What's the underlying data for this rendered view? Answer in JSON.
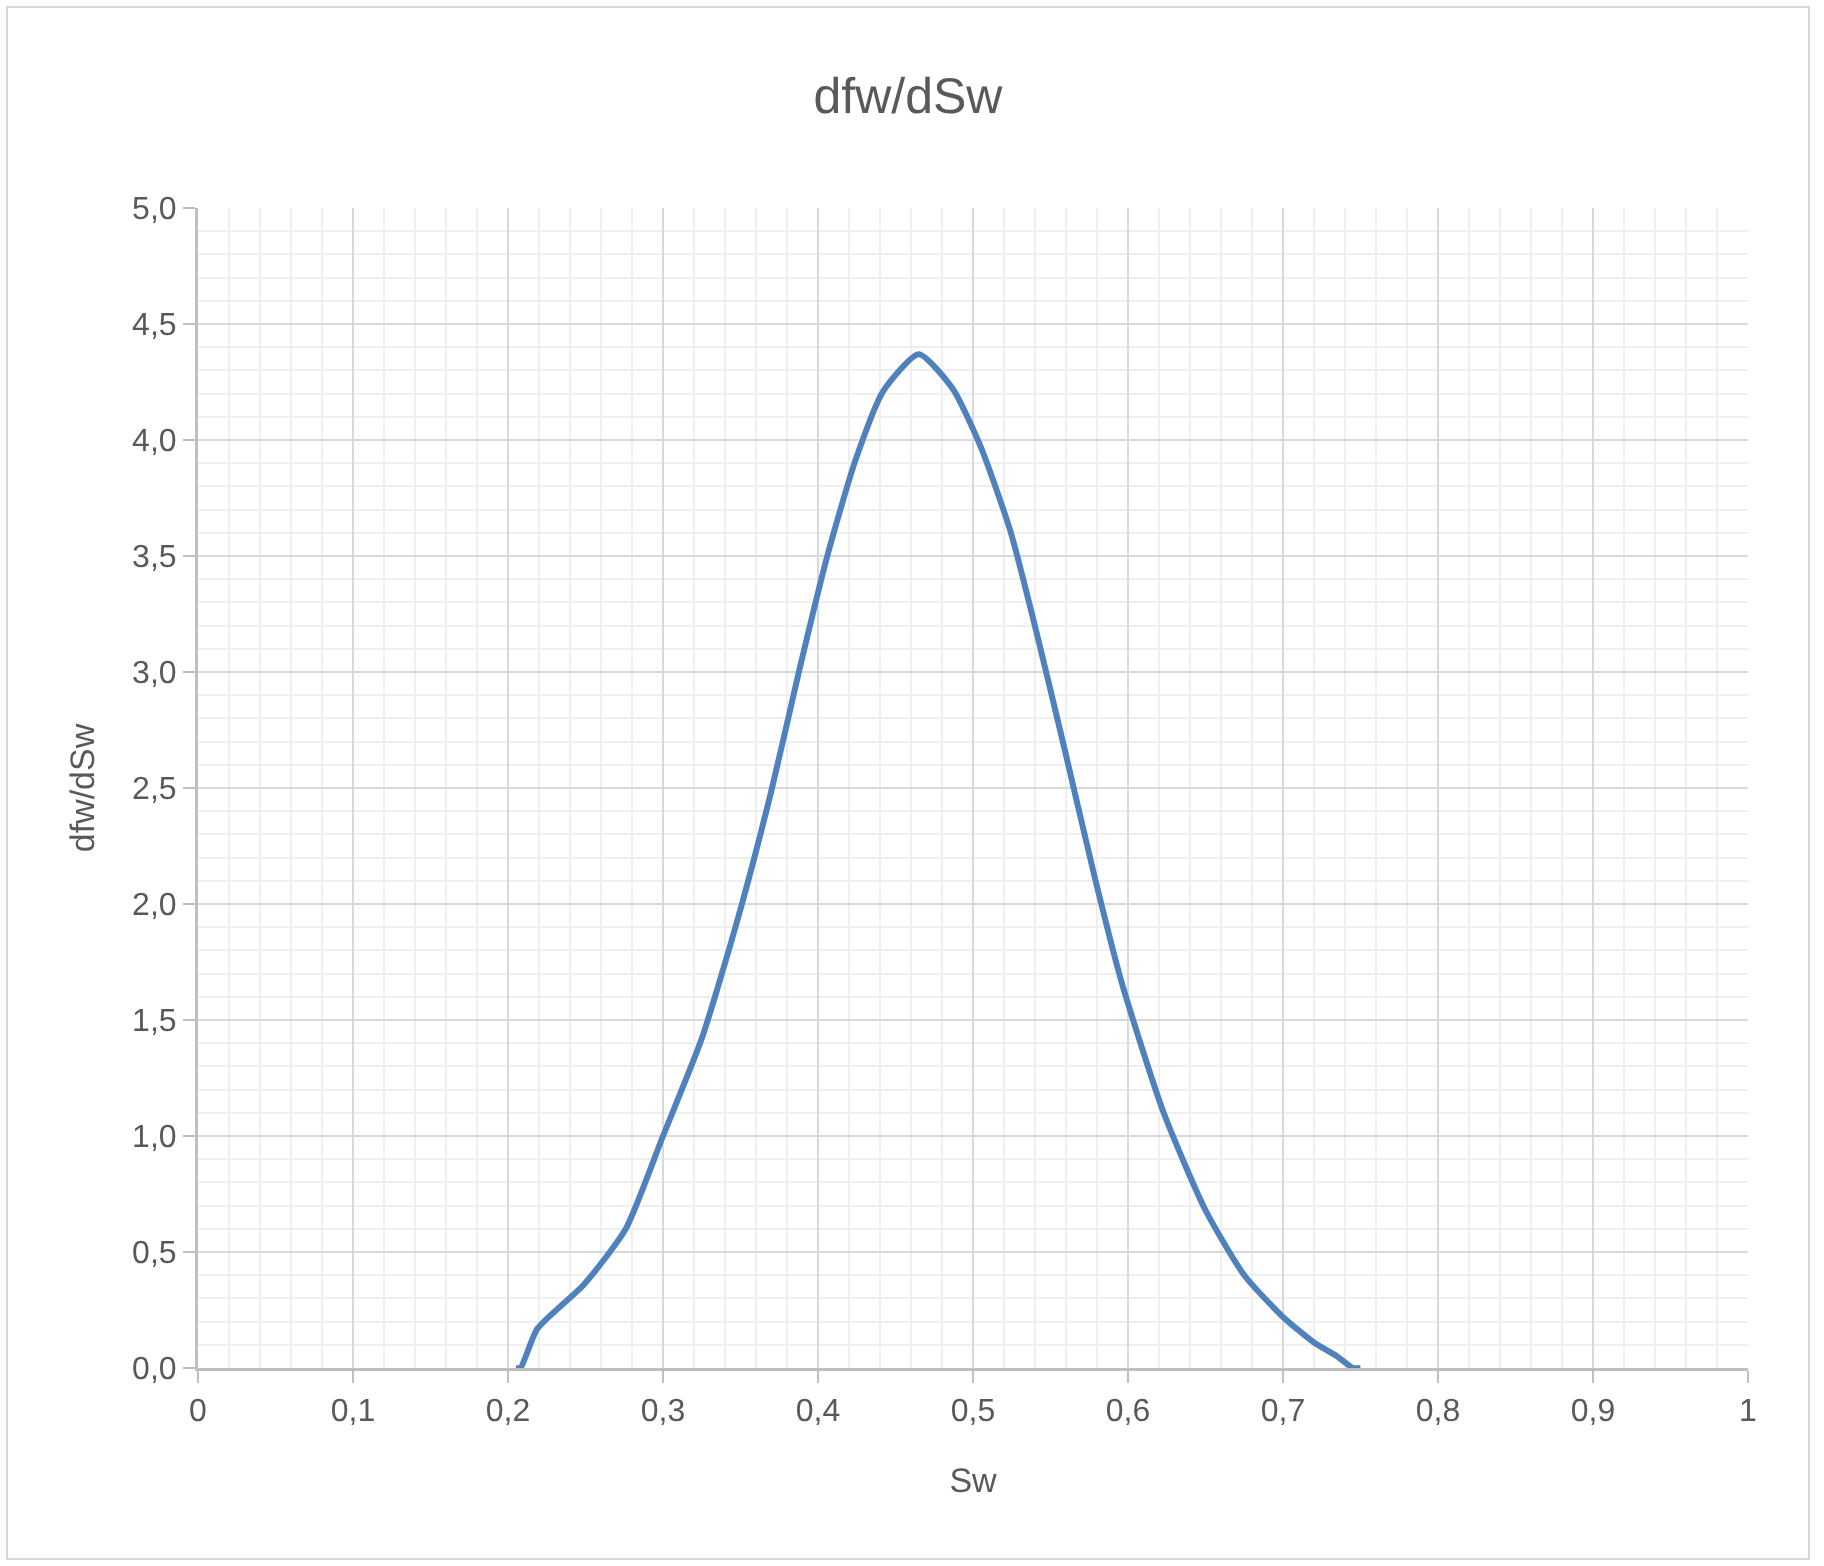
{
  "chart_data": {
    "type": "line",
    "title": "dfw/dSw",
    "xlabel": "Sw",
    "ylabel": "dfw/dSw",
    "x": [
      0.205,
      0.208,
      0.219,
      0.249,
      0.276,
      0.3,
      0.325,
      0.348,
      0.37,
      0.388,
      0.406,
      0.424,
      0.442,
      0.465,
      0.487,
      0.505,
      0.524,
      0.541,
      0.559,
      0.578,
      0.596,
      0.623,
      0.65,
      0.675,
      0.7,
      0.72,
      0.735,
      0.745,
      0.75
    ],
    "series": [
      {
        "color": "#4f81bd",
        "values": [
          0,
          0,
          0.17,
          0.36,
          0.6,
          1.0,
          1.42,
          1.93,
          2.49,
          3.01,
          3.5,
          3.91,
          4.21,
          4.37,
          4.22,
          3.97,
          3.61,
          3.17,
          2.67,
          2.13,
          1.66,
          1.1,
          0.68,
          0.4,
          0.22,
          0.11,
          0.05,
          0,
          0
        ]
      }
    ],
    "xlim": [
      0,
      1
    ],
    "ylim": [
      0,
      5
    ],
    "xticks": [
      0,
      {
        "value": 0.1,
        "label": "0,1"
      },
      {
        "value": 0.2,
        "label": "0,2"
      },
      {
        "value": 0.3,
        "label": "0,3"
      },
      {
        "value": 0.4,
        "label": "0,4"
      },
      {
        "value": 0.5,
        "label": "0,5"
      },
      {
        "value": 0.6,
        "label": "0,6"
      },
      {
        "value": 0.7,
        "label": "0,7"
      },
      {
        "value": 0.8,
        "label": "0,8"
      },
      {
        "value": 0.9,
        "label": "0,9"
      },
      1
    ],
    "yticks": [
      {
        "value": 0,
        "label": "0,0"
      },
      {
        "value": 0.5,
        "label": "0,5"
      },
      {
        "value": 1,
        "label": "1,0"
      },
      {
        "value": 1.5,
        "label": "1,5"
      },
      {
        "value": 2,
        "label": "2,0"
      },
      {
        "value": 2.5,
        "label": "2,5"
      },
      {
        "value": 3,
        "label": "3,0"
      },
      {
        "value": 3.5,
        "label": "3,5"
      },
      {
        "value": 4,
        "label": "4,0"
      },
      {
        "value": 4.5,
        "label": "4,5"
      },
      {
        "value": 5,
        "label": "5,0"
      }
    ],
    "grid": true,
    "marker": "none",
    "line_style": "solid"
  }
}
